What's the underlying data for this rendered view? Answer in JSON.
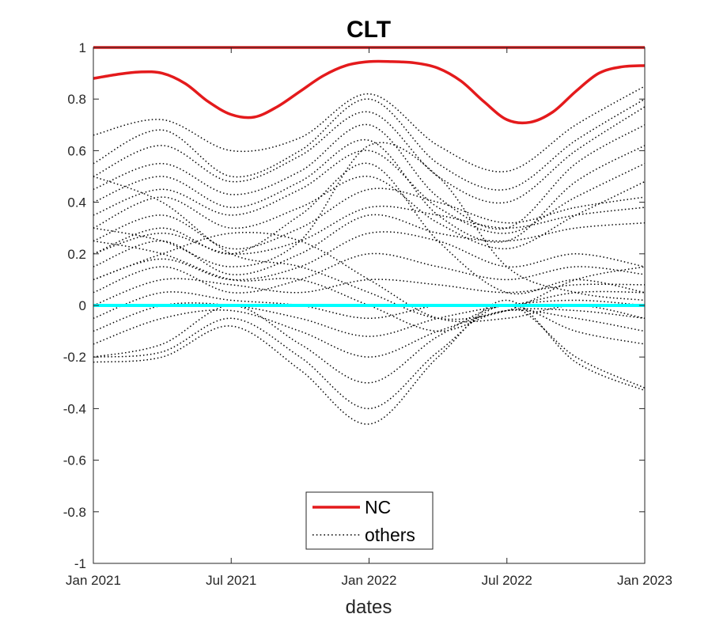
{
  "chart_data": {
    "type": "line",
    "title": "CLT",
    "xlabel": "dates",
    "ylabel": "",
    "xlim": [
      0,
      24
    ],
    "ylim": [
      -1,
      1
    ],
    "x_ticks": [
      {
        "value": 0,
        "label": "Jan 2021"
      },
      {
        "value": 6,
        "label": "Jul 2021"
      },
      {
        "value": 12,
        "label": "Jan 2022"
      },
      {
        "value": 18,
        "label": "Jul 2022"
      },
      {
        "value": 24,
        "label": "Jan 2023"
      }
    ],
    "y_ticks": [
      {
        "value": 1,
        "label": "1"
      },
      {
        "value": 0.8,
        "label": "0.8"
      },
      {
        "value": 0.6,
        "label": "0.6"
      },
      {
        "value": 0.4,
        "label": "0.4"
      },
      {
        "value": 0.2,
        "label": "0.2"
      },
      {
        "value": 0,
        "label": "0"
      },
      {
        "value": -0.2,
        "label": "-0.2"
      },
      {
        "value": -0.4,
        "label": "-0.4"
      },
      {
        "value": -0.6,
        "label": "-0.6"
      },
      {
        "value": -0.8,
        "label": "-0.8"
      },
      {
        "value": -1,
        "label": "-1"
      }
    ],
    "legend": {
      "position": "bottom-center",
      "entries": [
        {
          "label": "NC",
          "color": "#e41a1c",
          "style": "solid"
        },
        {
          "label": "others",
          "color": "#000000",
          "style": "dotted"
        }
      ]
    },
    "series": [
      {
        "name": "NC",
        "style": "solid",
        "color": "#e41a1c",
        "x": [
          0,
          24
        ],
        "y": [
          1,
          1
        ]
      },
      {
        "name": "NC",
        "style": "solid",
        "color": "#e41a1c",
        "x": [
          0,
          1,
          2,
          3,
          4,
          5,
          6,
          7,
          8,
          9,
          10,
          11,
          12,
          13,
          14,
          15,
          16,
          17,
          18,
          19,
          20,
          21,
          22,
          23,
          24
        ],
        "y": [
          0.88,
          0.895,
          0.905,
          0.9,
          0.86,
          0.79,
          0.74,
          0.73,
          0.77,
          0.83,
          0.89,
          0.93,
          0.945,
          0.945,
          0.94,
          0.92,
          0.87,
          0.79,
          0.72,
          0.71,
          0.75,
          0.83,
          0.9,
          0.925,
          0.93
        ]
      },
      {
        "name": "baseline",
        "style": "solid",
        "color": "#00ffff",
        "x": [
          0,
          24
        ],
        "y": [
          0,
          0
        ]
      },
      {
        "name": "others",
        "style": "dotted",
        "color": "#000000",
        "x": [
          0,
          3,
          6,
          9,
          12,
          15,
          18,
          21,
          24
        ],
        "y": [
          0.66,
          0.72,
          0.6,
          0.65,
          0.82,
          0.62,
          0.52,
          0.7,
          0.85
        ]
      },
      {
        "name": "others",
        "style": "dotted",
        "color": "#000000",
        "x": [
          0,
          3,
          6,
          9,
          12,
          15,
          18,
          21,
          24
        ],
        "y": [
          0.55,
          0.68,
          0.5,
          0.6,
          0.8,
          0.55,
          0.45,
          0.64,
          0.8
        ]
      },
      {
        "name": "others",
        "style": "dotted",
        "color": "#000000",
        "x": [
          0,
          3,
          6,
          9,
          12,
          15,
          18,
          21,
          24
        ],
        "y": [
          0.5,
          0.62,
          0.48,
          0.58,
          0.75,
          0.5,
          0.4,
          0.6,
          0.77
        ]
      },
      {
        "name": "others",
        "style": "dotted",
        "color": "#000000",
        "x": [
          0,
          3,
          6,
          9,
          12,
          15,
          18,
          21,
          24
        ],
        "y": [
          0.45,
          0.55,
          0.43,
          0.52,
          0.7,
          0.42,
          0.3,
          0.55,
          0.7
        ]
      },
      {
        "name": "others",
        "style": "dotted",
        "color": "#000000",
        "x": [
          0,
          3,
          6,
          9,
          12,
          15,
          18,
          21,
          24
        ],
        "y": [
          0.4,
          0.5,
          0.38,
          0.48,
          0.64,
          0.35,
          0.25,
          0.48,
          0.62
        ]
      },
      {
        "name": "others",
        "style": "dotted",
        "color": "#000000",
        "x": [
          0,
          3,
          6,
          9,
          12,
          15,
          18,
          21,
          24
        ],
        "y": [
          0.35,
          0.45,
          0.35,
          0.45,
          0.6,
          0.38,
          0.28,
          0.42,
          0.55
        ]
      },
      {
        "name": "others",
        "style": "dotted",
        "color": "#000000",
        "x": [
          0,
          3,
          6,
          9,
          12,
          15,
          18,
          21,
          24
        ],
        "y": [
          0.3,
          0.42,
          0.3,
          0.38,
          0.5,
          0.32,
          0.22,
          0.35,
          0.48
        ]
      },
      {
        "name": "others",
        "style": "dotted",
        "color": "#000000",
        "x": [
          0,
          3,
          6,
          9,
          12,
          15,
          18,
          21,
          24
        ],
        "y": [
          0.25,
          0.35,
          0.22,
          0.3,
          0.45,
          0.4,
          0.32,
          0.38,
          0.42
        ]
      },
      {
        "name": "others",
        "style": "dotted",
        "color": "#000000",
        "x": [
          0,
          3,
          6,
          9,
          12,
          15,
          18,
          21,
          24
        ],
        "y": [
          0.2,
          0.28,
          0.2,
          0.25,
          0.38,
          0.35,
          0.3,
          0.35,
          0.38
        ]
      },
      {
        "name": "others",
        "style": "dotted",
        "color": "#000000",
        "x": [
          0,
          3,
          6,
          9,
          12,
          15,
          18,
          21,
          24
        ],
        "y": [
          0.15,
          0.25,
          0.12,
          0.2,
          0.35,
          0.28,
          0.25,
          0.3,
          0.32
        ]
      },
      {
        "name": "others",
        "style": "dotted",
        "color": "#000000",
        "x": [
          0,
          3,
          6,
          9,
          12,
          15,
          18,
          21,
          24
        ],
        "y": [
          0.1,
          0.18,
          0.1,
          0.15,
          0.28,
          0.25,
          0.15,
          0.2,
          0.15
        ]
      },
      {
        "name": "others",
        "style": "dotted",
        "color": "#000000",
        "x": [
          0,
          3,
          6,
          9,
          12,
          15,
          18,
          21,
          24
        ],
        "y": [
          0.05,
          0.15,
          0.05,
          0.1,
          0.2,
          0.15,
          0.1,
          0.15,
          0.12
        ]
      },
      {
        "name": "others",
        "style": "dotted",
        "color": "#000000",
        "x": [
          0,
          3,
          6,
          9,
          12,
          15,
          18,
          21,
          24
        ],
        "y": [
          0.0,
          0.1,
          0.08,
          0.05,
          0.1,
          0.08,
          0.05,
          0.08,
          0.08
        ]
      },
      {
        "name": "others",
        "style": "dotted",
        "color": "#000000",
        "x": [
          0,
          3,
          6,
          9,
          12,
          15,
          18,
          21,
          24
        ],
        "y": [
          -0.05,
          0.05,
          0.02,
          0.0,
          -0.05,
          0.0,
          0.0,
          0.05,
          0.05
        ]
      },
      {
        "name": "others",
        "style": "dotted",
        "color": "#000000",
        "x": [
          0,
          3,
          6,
          9,
          12,
          15,
          18,
          21,
          24
        ],
        "y": [
          -0.1,
          0.0,
          0.0,
          -0.05,
          -0.12,
          -0.05,
          0.0,
          0.02,
          0.0
        ]
      },
      {
        "name": "others",
        "style": "dotted",
        "color": "#000000",
        "x": [
          0,
          3,
          6,
          9,
          12,
          15,
          18,
          21,
          24
        ],
        "y": [
          -0.15,
          -0.05,
          -0.02,
          -0.1,
          -0.2,
          -0.1,
          -0.02,
          -0.02,
          -0.05
        ]
      },
      {
        "name": "others",
        "style": "dotted",
        "color": "#000000",
        "x": [
          0,
          3,
          6,
          9,
          12,
          15,
          18,
          21,
          24
        ],
        "y": [
          -0.2,
          -0.15,
          0.0,
          -0.15,
          -0.3,
          -0.12,
          0.0,
          -0.1,
          -0.15
        ]
      },
      {
        "name": "others",
        "style": "dotted",
        "color": "#000000",
        "x": [
          0,
          3,
          6,
          9,
          12,
          15,
          18,
          21,
          24
        ],
        "y": [
          -0.2,
          -0.18,
          -0.05,
          -0.2,
          -0.4,
          -0.18,
          0.0,
          -0.2,
          -0.32
        ]
      },
      {
        "name": "others",
        "style": "dotted",
        "color": "#000000",
        "x": [
          0,
          3,
          6,
          9,
          12,
          15,
          18,
          21,
          24
        ],
        "y": [
          -0.22,
          -0.2,
          -0.08,
          -0.25,
          -0.46,
          -0.2,
          0.02,
          -0.22,
          -0.33
        ]
      },
      {
        "name": "others",
        "style": "dotted",
        "color": "#000000",
        "x": [
          0,
          3,
          6,
          9,
          12,
          15,
          18,
          21,
          24
        ],
        "y": [
          0.2,
          0.3,
          0.2,
          0.35,
          0.55,
          0.25,
          0.05,
          0.1,
          0.05
        ]
      },
      {
        "name": "others",
        "style": "dotted",
        "color": "#000000",
        "x": [
          0,
          3,
          6,
          9,
          12,
          15,
          18,
          21,
          24
        ],
        "y": [
          0.5,
          0.4,
          0.2,
          0.15,
          0.05,
          -0.05,
          -0.02,
          0.1,
          0.15
        ]
      },
      {
        "name": "others",
        "style": "dotted",
        "color": "#000000",
        "x": [
          0,
          3,
          6,
          9,
          12,
          15,
          18,
          21,
          24
        ],
        "y": [
          0.3,
          0.25,
          0.15,
          0.25,
          0.62,
          0.5,
          0.15,
          0.05,
          0.02
        ]
      },
      {
        "name": "others",
        "style": "dotted",
        "color": "#000000",
        "x": [
          0,
          3,
          6,
          9,
          12,
          15,
          18,
          21,
          24
        ],
        "y": [
          0.25,
          0.2,
          0.1,
          0.1,
          0.0,
          -0.1,
          -0.02,
          -0.05,
          -0.1
        ]
      },
      {
        "name": "others",
        "style": "dotted",
        "color": "#000000",
        "x": [
          0,
          3,
          6,
          9,
          12,
          15,
          18,
          21,
          24
        ],
        "y": [
          0.1,
          0.2,
          0.28,
          0.25,
          0.1,
          -0.05,
          -0.05,
          0.0,
          -0.05
        ]
      }
    ]
  }
}
